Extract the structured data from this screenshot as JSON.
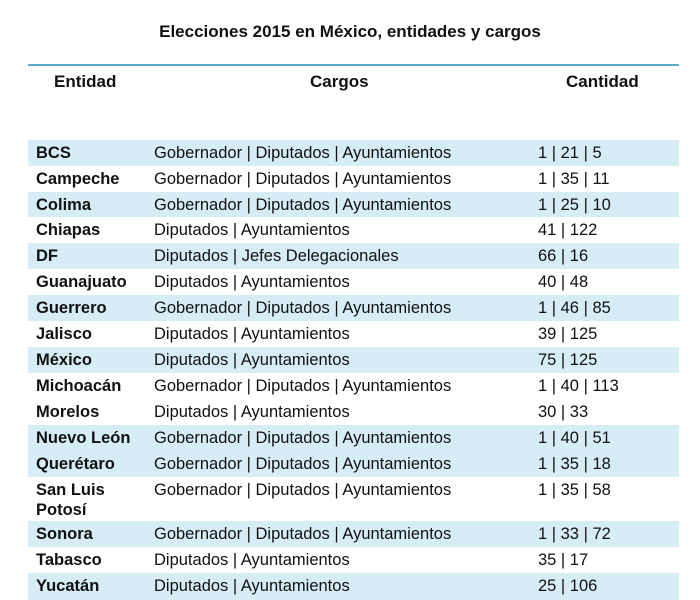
{
  "title": "Elecciones 2015 en México, entidades y cargos",
  "headers": {
    "entidad": "Entidad",
    "cargos": "Cargos",
    "cantidad": "Cantidad"
  },
  "rows": [
    {
      "entidad": "BCS",
      "cargos": "Gobernador | Diputados | Ayuntamientos",
      "cantidad": "1 | 21 | 5"
    },
    {
      "entidad": "Campeche",
      "cargos": "Gobernador | Diputados | Ayuntamientos",
      "cantidad": "1 | 35 | 11"
    },
    {
      "entidad": "Colima",
      "cargos": "Gobernador | Diputados | Ayuntamientos",
      "cantidad": "1 | 25 | 10"
    },
    {
      "entidad": "Chiapas",
      "cargos": "Diputados | Ayuntamientos",
      "cantidad": "41 | 122"
    },
    {
      "entidad": "DF",
      "cargos": "Diputados | Jefes Delegacionales",
      "cantidad": "66 | 16"
    },
    {
      "entidad": "Guanajuato",
      "cargos": "Diputados | Ayuntamientos",
      "cantidad": "40 | 48"
    },
    {
      "entidad": "Guerrero",
      "cargos": "Gobernador | Diputados | Ayuntamientos",
      "cantidad": "1 | 46 | 85"
    },
    {
      "entidad": "Jalisco",
      "cargos": "Diputados | Ayuntamientos",
      "cantidad": "39 | 125"
    },
    {
      "entidad": "México",
      "cargos": "Diputados | Ayuntamientos",
      "cantidad": "75 | 125"
    },
    {
      "entidad": "Michoacán",
      "cargos": "Gobernador | Diputados | Ayuntamientos",
      "cantidad": "1 | 40 | 113"
    },
    {
      "entidad": "Morelos",
      "cargos": "Diputados | Ayuntamientos",
      "cantidad": "30 | 33"
    },
    {
      "entidad": "Nuevo León",
      "cargos": "Gobernador | Diputados | Ayuntamientos",
      "cantidad": "1 | 40 | 51"
    },
    {
      "entidad": "Querétaro",
      "cargos": "Gobernador | Diputados | Ayuntamientos",
      "cantidad": "1 | 35 | 18"
    },
    {
      "entidad": "San Luis Potosí",
      "cargos": "Gobernador | Diputados | Ayuntamientos",
      "cantidad": "1 | 35 | 58"
    },
    {
      "entidad": "Sonora",
      "cargos": "Gobernador | Diputados | Ayuntamientos",
      "cantidad": "1 | 33 | 72"
    },
    {
      "entidad": "Tabasco",
      "cargos": "Diputados | Ayuntamientos",
      "cantidad": "35 | 17"
    },
    {
      "entidad": "Yucatán",
      "cargos": "Diputados | Ayuntamientos",
      "cantidad": "25 | 106"
    }
  ]
}
